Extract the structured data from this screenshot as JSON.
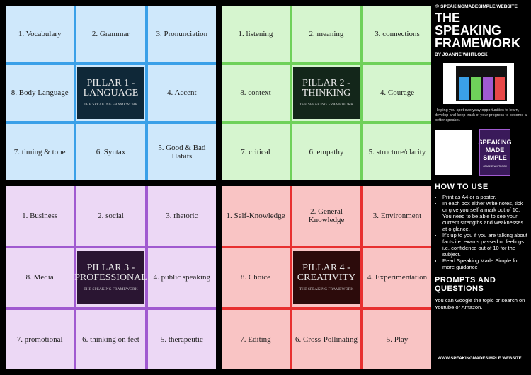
{
  "header": {
    "site_top": "@ SPEAKINGMADESIMPLE.WEBSITE",
    "title": "THE SPEAKING FRAMEWORK",
    "byline": "BY JOANNE WHITLOCK"
  },
  "pillars": [
    {
      "title": "PILLAR 1 - LANGUAGE",
      "subtitle": "THE SPEAKING FRAMEWORK",
      "cells": [
        "1. Vocabulary",
        "2. Grammar",
        "3. Pronunciation",
        "8. Body Language",
        "4. Accent",
        "7. timing & tone",
        "6. Syntax",
        "5. Good & Bad Habits"
      ]
    },
    {
      "title": "PILLAR 2 - THINKING",
      "subtitle": "THE SPEAKING FRAMEWORK",
      "cells": [
        "1. listening",
        "2. meaning",
        "3. connections",
        "8. context",
        "4. Courage",
        "7. critical",
        "6. empathy",
        "5. structure/clarity"
      ]
    },
    {
      "title": "PILLAR 3 - PROFESSIONAL",
      "subtitle": "THE SPEAKING FRAMEWORK",
      "cells": [
        "1. Business",
        "2. social",
        "3. rhetoric",
        "8. Media",
        "4. public speaking",
        "7. promotional",
        "6. thinking on feet",
        "5. therapeutic"
      ]
    },
    {
      "title": "PILLAR 4 - CREATIVITY",
      "subtitle": "THE SPEAKING FRAMEWORK",
      "cells": [
        "1. Self-Knowledge",
        "2. General Knowledge",
        "3. Environment",
        "8. Choice",
        "4. Experimentation",
        "7. Editing",
        "6. Cross-Pollinating",
        "5. Play"
      ]
    }
  ],
  "sidebar": {
    "intro": "Helping you spot everyday opportunities to learn, develop and keep track of your progress to become a better speaker.",
    "book": {
      "title": "SPEAKING MADE SIMPLE",
      "author": "JOANNE WHITLOCK"
    },
    "how_to_use": {
      "heading": "HOW TO USE",
      "items": [
        "Print as A4 or a poster.",
        "In each box either write notes, tick or give yourself a mark out of 10. You need to be able to see your current strengths and weaknesses at o glance.",
        "It's up to you if you are talking about facts i.e. exams passed or feelings i.e. confidence out of 10 for the subject.",
        "Read Speaking Made Simple for more guidance"
      ]
    },
    "prompts": {
      "heading": "PROMPTS AND QUESTIONS",
      "text": "You can Google the topic or search on Youtube or Amazon."
    },
    "footer": "WWW.SPEAKINGMADESIMPLE.WEBSITE"
  }
}
